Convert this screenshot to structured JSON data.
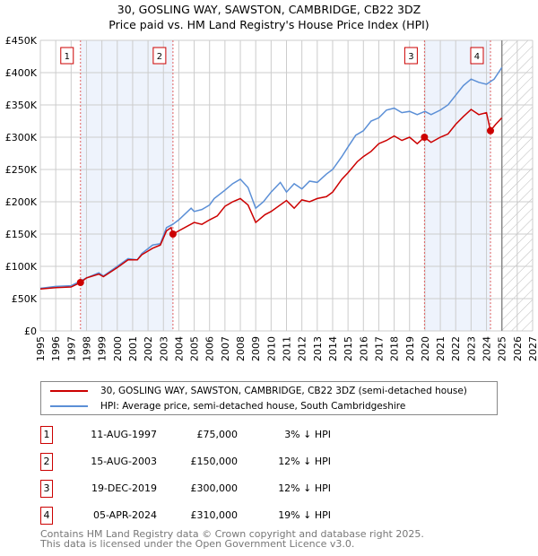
{
  "chart_data": {
    "type": "line",
    "title": "30, GOSLING WAY, SAWSTON, CAMBRIDGE, CB22 3DZ",
    "subtitle": "Price paid vs. HM Land Registry's House Price Index (HPI)",
    "xlim": [
      1995,
      2027
    ],
    "ylim": [
      0,
      450000
    ],
    "y_ticks": [
      "£0",
      "£50K",
      "£100K",
      "£150K",
      "£200K",
      "£250K",
      "£300K",
      "£350K",
      "£400K",
      "£450K"
    ],
    "x_ticks": [
      "1995",
      "1996",
      "1997",
      "1998",
      "1999",
      "2000",
      "2001",
      "2002",
      "2003",
      "2004",
      "2005",
      "2006",
      "2007",
      "2008",
      "2009",
      "2010",
      "2011",
      "2012",
      "2013",
      "2014",
      "2015",
      "2016",
      "2017",
      "2018",
      "2019",
      "2020",
      "2021",
      "2022",
      "2023",
      "2024",
      "2025",
      "2026",
      "2027"
    ],
    "data_end": 2025.0,
    "series": [
      {
        "name": "30, GOSLING WAY, SAWSTON, CAMBRIDGE, CB22 3DZ (semi-detached house)",
        "color": "#cc0000",
        "x": [
          1995,
          1996,
          1997,
          1997.61,
          1998,
          1998.8,
          1999.1,
          2000,
          2000.7,
          2001.3,
          2001.6,
          2002.3,
          2002.8,
          2003.2,
          2003.5,
          2003.62,
          2004,
          2005,
          2005.5,
          2006,
          2006.5,
          2007,
          2007.5,
          2008,
          2008.5,
          2009,
          2009.6,
          2010,
          2011,
          2011.5,
          2012,
          2012.5,
          2013,
          2013.6,
          2014,
          2014.6,
          2015,
          2015.6,
          2016,
          2016.5,
          2017,
          2017.5,
          2018,
          2018.5,
          2019,
          2019.5,
          2019.97,
          2020.4,
          2021,
          2021.5,
          2022,
          2022.5,
          2023,
          2023.5,
          2024,
          2024.26,
          2024.6,
          2025
        ],
        "values": [
          65,
          67,
          68,
          75,
          82,
          88,
          84,
          98,
          110,
          110,
          118,
          128,
          133,
          155,
          160,
          150,
          155,
          168,
          165,
          172,
          178,
          193,
          200,
          205,
          195,
          168,
          180,
          185,
          202,
          190,
          203,
          200,
          205,
          208,
          215,
          235,
          245,
          262,
          270,
          278,
          290,
          295,
          302,
          295,
          300,
          290,
          300,
          292,
          300,
          305,
          320,
          332,
          343,
          335,
          338,
          310,
          320,
          330
        ]
      },
      {
        "name": "HPI: Average price, semi-detached house, South Cambridgeshire",
        "color": "#5b8fd6",
        "x": [
          1995,
          1996,
          1997,
          1997.6,
          1998,
          1998.8,
          1999.1,
          2000,
          2000.7,
          2001.3,
          2001.6,
          2002.3,
          2002.8,
          2003.2,
          2003.6,
          2004,
          2004.8,
          2005,
          2005.5,
          2006,
          2006.3,
          2007,
          2007.5,
          2008,
          2008.5,
          2009,
          2009.5,
          2010,
          2010.6,
          2011,
          2011.5,
          2012,
          2012.5,
          2013,
          2013.6,
          2014,
          2014.6,
          2015,
          2015.5,
          2016,
          2016.5,
          2017,
          2017.5,
          2018,
          2018.5,
          2019,
          2019.5,
          2020,
          2020.4,
          2021,
          2021.5,
          2022,
          2022.5,
          2023,
          2023.5,
          2024,
          2024.5,
          2025
        ],
        "values": [
          66,
          69,
          70,
          77,
          82,
          90,
          85,
          100,
          112,
          110,
          120,
          133,
          135,
          160,
          165,
          172,
          190,
          185,
          188,
          195,
          205,
          218,
          228,
          235,
          222,
          190,
          200,
          215,
          230,
          215,
          228,
          220,
          232,
          230,
          243,
          250,
          270,
          285,
          303,
          310,
          325,
          330,
          342,
          345,
          338,
          340,
          335,
          340,
          335,
          342,
          350,
          365,
          380,
          390,
          385,
          382,
          390,
          408
        ]
      }
    ],
    "sales": [
      {
        "label": "1",
        "x": 1997.61,
        "value": 75000,
        "date": "11-AUG-1997",
        "price": "£75,000",
        "hpi": "3% ↓ HPI"
      },
      {
        "label": "2",
        "x": 2003.62,
        "value": 150000,
        "date": "15-AUG-2003",
        "price": "£150,000",
        "hpi": "12% ↓ HPI"
      },
      {
        "label": "3",
        "x": 2019.97,
        "value": 300000,
        "date": "19-DEC-2019",
        "price": "£300,000",
        "hpi": "12% ↓ HPI"
      },
      {
        "label": "4",
        "x": 2024.26,
        "value": 310000,
        "date": "05-APR-2024",
        "price": "£310,000",
        "hpi": "19% ↓ HPI"
      }
    ],
    "legend": {
      "placement": "below"
    }
  },
  "footer": {
    "line1": "Contains HM Land Registry data © Crown copyright and database right 2025.",
    "line2": "This data is licensed under the Open Government Licence v3.0."
  }
}
